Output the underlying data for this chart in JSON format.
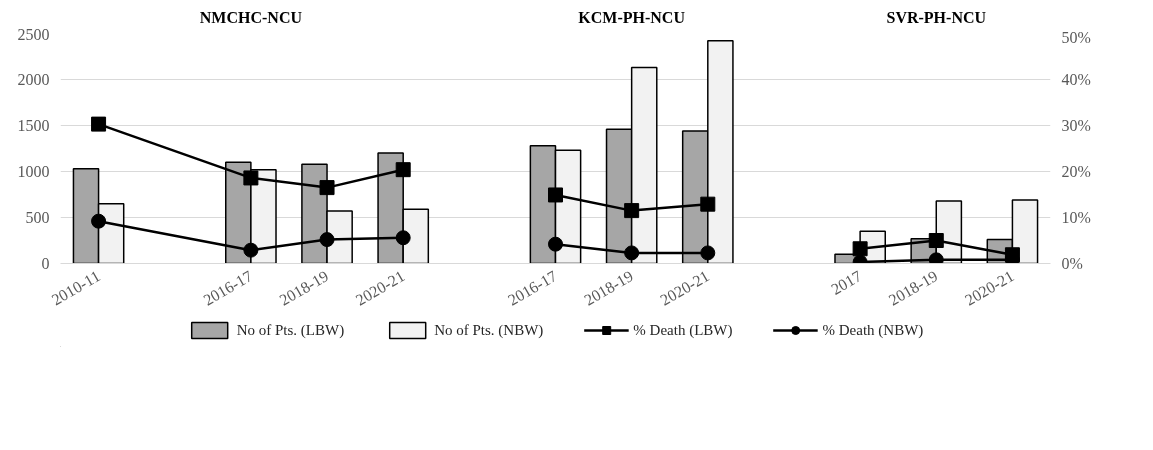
{
  "chart_data": {
    "type": "bar",
    "categories": [
      "2010-11",
      null,
      "2016-17",
      "2018-19",
      "2020-21",
      null,
      "2016-17",
      "2018-19",
      "2020-21",
      null,
      "2017",
      "2018-19",
      "2020-21"
    ],
    "series": [
      {
        "name": "No of Pts. (LBW)",
        "color": "#a6a6a6",
        "values": [
          1030,
          null,
          1100,
          1080,
          1200,
          null,
          1280,
          1460,
          1440,
          null,
          100,
          270,
          260
        ]
      },
      {
        "name": "No of Pts. (NBW)",
        "color": "#f2f2f2",
        "values": [
          650,
          null,
          1020,
          570,
          590,
          null,
          1230,
          2130,
          2420,
          null,
          350,
          680,
          690
        ]
      },
      {
        "name": "% Death (LBW)",
        "type": "line",
        "axis": "y2",
        "marker": "square",
        "color": "#000000",
        "values": [
          30.3,
          null,
          18.6,
          16.5,
          20.4,
          null,
          null,
          null,
          null,
          null,
          null,
          null,
          null
        ]
      },
      {
        "type": "line",
        "axis": "y2",
        "marker": "square",
        "color": "#000000",
        "values": [
          null,
          null,
          null,
          null,
          null,
          null,
          14.9,
          11.5,
          12.9,
          null,
          null,
          null,
          null
        ]
      },
      {
        "type": "line",
        "axis": "y2",
        "marker": "square",
        "color": "#000000",
        "values": [
          null,
          null,
          null,
          null,
          null,
          null,
          null,
          null,
          null,
          null,
          3.2,
          5.0,
          1.9
        ]
      },
      {
        "name": "% Death (NBW)",
        "type": "line",
        "axis": "y2",
        "marker": "circle",
        "color": "#000000",
        "values": [
          9.2,
          null,
          2.9,
          5.2,
          5.6,
          null,
          null,
          null,
          null,
          null,
          null,
          null,
          null
        ]
      },
      {
        "type": "line",
        "axis": "y2",
        "marker": "circle",
        "color": "#000000",
        "values": [
          null,
          null,
          null,
          null,
          null,
          null,
          4.2,
          2.3,
          2.3,
          null,
          null,
          null,
          null
        ]
      },
      {
        "type": "line",
        "axis": "y2",
        "marker": "circle",
        "color": "#000000",
        "values": [
          null,
          null,
          null,
          null,
          null,
          null,
          null,
          null,
          null,
          null,
          0.3,
          0.8,
          0.8
        ]
      }
    ],
    "annotations": [
      "NMCHC-NCU",
      "KCM-PH-NCU",
      "SVR-PH-NCU"
    ],
    "ylim": [
      0,
      2500
    ],
    "yticks": [
      0,
      500,
      1000,
      1500,
      2000,
      2500
    ],
    "y2lim": [
      0,
      50
    ],
    "y2ticks": [
      {
        "value": 0,
        "label": "0%"
      },
      {
        "value": 10,
        "label": "10%"
      },
      {
        "value": 20,
        "label": "20%"
      },
      {
        "value": 30,
        "label": "30%"
      },
      {
        "value": 40,
        "label": "40%"
      },
      {
        "value": 50,
        "label": "50%"
      }
    ],
    "grid": "y",
    "legend": "bottom"
  }
}
